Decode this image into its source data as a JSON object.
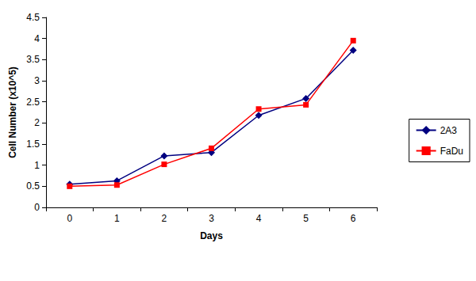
{
  "chart_data": {
    "type": "line",
    "x_label": "Days",
    "y_label": "Cell Number (x10^5)",
    "categories": [
      "0",
      "1",
      "2",
      "3",
      "4",
      "5",
      "6"
    ],
    "series": [
      {
        "name": "2A3",
        "color": "#000080",
        "marker": "diamond",
        "values": [
          0.55,
          0.63,
          1.22,
          1.3,
          2.18,
          2.58,
          3.72
        ]
      },
      {
        "name": "FaDu",
        "color": "#ff0000",
        "marker": "square",
        "values": [
          0.5,
          0.53,
          1.02,
          1.4,
          2.33,
          2.43,
          3.95
        ]
      }
    ],
    "ylim": [
      0,
      4.5
    ],
    "yticks": [
      0,
      0.5,
      1,
      1.5,
      2,
      2.5,
      3,
      3.5,
      4,
      4.5
    ],
    "grid": false,
    "legend": "right"
  }
}
